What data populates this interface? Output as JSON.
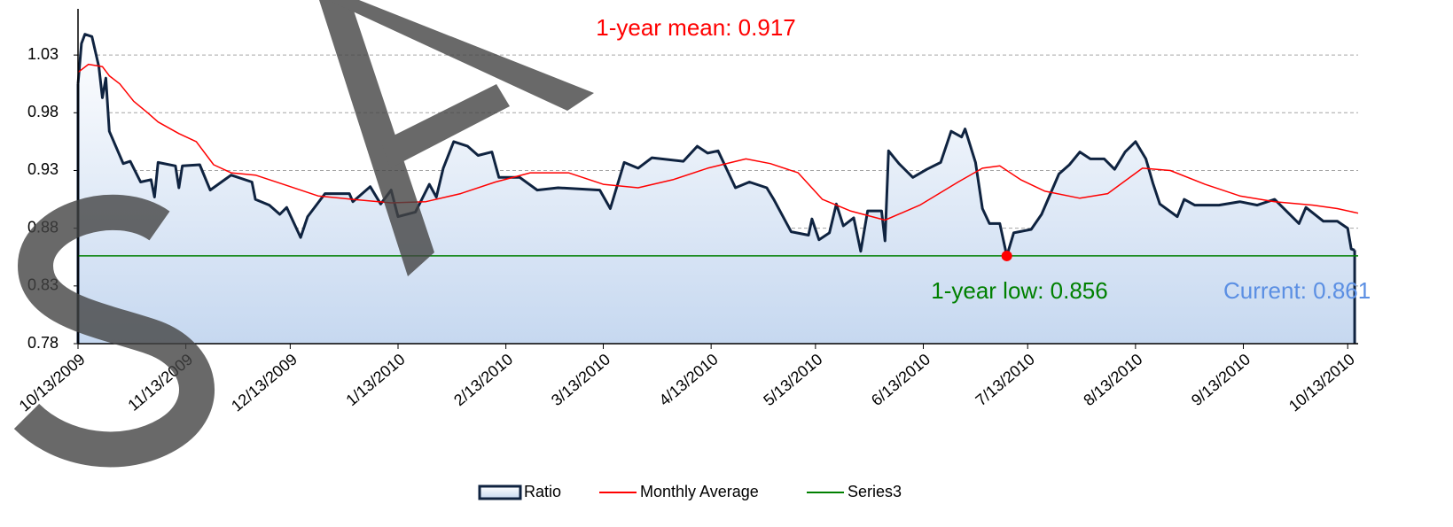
{
  "chart_data": {
    "type": "line",
    "annotations": [
      {
        "text": "1-year mean: 0.917",
        "color": "#ff0000"
      },
      {
        "text": "1-year low: 0.856",
        "color": "#008000"
      },
      {
        "text": "Current: 0.861",
        "color": "#5b8fe3"
      }
    ],
    "low_point": {
      "x": "7/7/2010",
      "value": 0.856,
      "color": "#ff0000"
    },
    "xlim": [
      "10/13/2009",
      "10/16/2010"
    ],
    "xticks": [
      "10/13/2009",
      "11/13/2009",
      "12/13/2009",
      "1/13/2010",
      "2/13/2010",
      "3/13/2010",
      "4/13/2010",
      "5/13/2010",
      "6/13/2010",
      "7/13/2010",
      "8/13/2010",
      "9/13/2010",
      "10/13/2010"
    ],
    "ylim": [
      0.78,
      1.07
    ],
    "yticks": [
      0.78,
      0.83,
      0.88,
      0.93,
      0.98,
      1.03
    ],
    "grid": true,
    "legend": "bottom",
    "series": [
      {
        "name": "Ratio",
        "color": "#0f2340",
        "fill": "#c6d8f0",
        "x": [
          "10/13/2009",
          "10/14/2009",
          "10/15/2009",
          "10/17/2009",
          "10/19/2009",
          "10/20/2009",
          "10/21/2009",
          "10/22/2009",
          "10/26/2009",
          "10/28/2009",
          "10/31/2009",
          "11/3/2009",
          "11/4/2009",
          "11/5/2009",
          "11/10/2009",
          "11/11/2009",
          "11/12/2009",
          "11/17/2009",
          "11/20/2009",
          "11/26/2009",
          "12/2/2009",
          "12/3/2009",
          "12/7/2009",
          "12/10/2009",
          "12/12/2009",
          "12/16/2009",
          "12/18/2009",
          "12/23/2009",
          "12/30/2009",
          "12/31/2009",
          "1/5/2010",
          "1/8/2010",
          "1/11/2010",
          "1/13/2010",
          "1/18/2010",
          "1/22/2010",
          "1/24/2010",
          "1/26/2010",
          "1/29/2010",
          "2/2/2010",
          "2/5/2010",
          "2/9/2010",
          "2/11/2010",
          "2/17/2010",
          "2/22/2010",
          "2/28/2010",
          "3/12/2010",
          "3/15/2010",
          "3/19/2010",
          "3/23/2010",
          "3/27/2010",
          "4/5/2010",
          "4/9/2010",
          "4/12/2010",
          "4/15/2010",
          "4/20/2010",
          "4/24/2010",
          "4/29/2010",
          "5/1/2010",
          "5/6/2010",
          "5/11/2010",
          "5/12/2010",
          "5/14/2010",
          "5/17/2010",
          "5/19/2010",
          "5/21/2010",
          "5/24/2010",
          "5/26/2010",
          "5/28/2010",
          "6/1/2010",
          "6/2/2010",
          "6/3/2010",
          "6/6/2010",
          "6/10/2010",
          "6/14/2010",
          "6/18/2010",
          "6/21/2010",
          "6/24/2010",
          "6/25/2010",
          "6/28/2010",
          "6/30/2010",
          "7/2/2010",
          "7/5/2010",
          "7/7/2010",
          "7/9/2010",
          "7/14/2010",
          "7/17/2010",
          "7/22/2010",
          "7/25/2010",
          "7/28/2010",
          "7/31/2010",
          "8/4/2010",
          "8/7/2010",
          "8/10/2010",
          "8/13/2010",
          "8/16/2010",
          "8/18/2010",
          "8/20/2010",
          "8/25/2010",
          "8/27/2010",
          "8/30/2010",
          "9/6/2010",
          "9/12/2010",
          "9/17/2010",
          "9/22/2010",
          "9/29/2010",
          "10/1/2010",
          "10/6/2010",
          "10/10/2010",
          "10/13/2010",
          "10/14/2010",
          "10/15/2010"
        ],
        "values": [
          1.005,
          1.04,
          1.048,
          1.046,
          1.02,
          0.993,
          1.01,
          0.964,
          0.936,
          0.938,
          0.92,
          0.922,
          0.907,
          0.937,
          0.934,
          0.915,
          0.934,
          0.935,
          0.913,
          0.926,
          0.92,
          0.905,
          0.9,
          0.892,
          0.898,
          0.872,
          0.89,
          0.91,
          0.91,
          0.903,
          0.916,
          0.901,
          0.913,
          0.89,
          0.894,
          0.918,
          0.907,
          0.932,
          0.955,
          0.951,
          0.943,
          0.946,
          0.924,
          0.924,
          0.913,
          0.915,
          0.913,
          0.897,
          0.937,
          0.932,
          0.941,
          0.938,
          0.951,
          0.945,
          0.947,
          0.915,
          0.92,
          0.915,
          0.905,
          0.877,
          0.874,
          0.888,
          0.87,
          0.876,
          0.901,
          0.882,
          0.889,
          0.86,
          0.895,
          0.895,
          0.869,
          0.947,
          0.936,
          0.924,
          0.931,
          0.937,
          0.964,
          0.959,
          0.966,
          0.937,
          0.897,
          0.884,
          0.884,
          0.856,
          0.876,
          0.879,
          0.892,
          0.927,
          0.935,
          0.946,
          0.94,
          0.94,
          0.931,
          0.946,
          0.955,
          0.94,
          0.919,
          0.901,
          0.89,
          0.905,
          0.9,
          0.9,
          0.903,
          0.9,
          0.905,
          0.884,
          0.898,
          0.886,
          0.886,
          0.88,
          0.862,
          0.861
        ]
      },
      {
        "name": "Monthly Average",
        "color": "#ff0000",
        "x": [
          "10/13/2009",
          "10/16/2009",
          "10/20/2009",
          "10/22/2009",
          "10/25/2009",
          "10/29/2009",
          "11/2/2009",
          "11/5/2009",
          "11/11/2009",
          "11/16/2009",
          "11/21/2009",
          "11/26/2009",
          "12/3/2009",
          "12/11/2009",
          "12/21/2009",
          "12/31/2009",
          "1/11/2010",
          "1/21/2010",
          "1/31/2010",
          "2/10/2010",
          "2/20/2010",
          "3/3/2010",
          "3/13/2010",
          "3/23/2010",
          "4/2/2010",
          "4/12/2010",
          "4/23/2010",
          "4/30/2010",
          "5/8/2010",
          "5/15/2010",
          "5/23/2010",
          "6/2/2010",
          "6/12/2010",
          "6/23/2010",
          "6/30/2010",
          "7/5/2010",
          "7/11/2010",
          "7/18/2010",
          "7/28/2010",
          "8/5/2010",
          "8/15/2010",
          "8/23/2010",
          "9/2/2010",
          "9/12/2010",
          "9/22/2010",
          "10/3/2010",
          "10/10/2010",
          "10/16/2010"
        ],
        "values": [
          1.015,
          1.022,
          1.02,
          1.012,
          1.005,
          0.99,
          0.98,
          0.972,
          0.962,
          0.955,
          0.935,
          0.928,
          0.926,
          0.918,
          0.908,
          0.905,
          0.902,
          0.903,
          0.91,
          0.92,
          0.928,
          0.928,
          0.918,
          0.915,
          0.922,
          0.932,
          0.94,
          0.936,
          0.928,
          0.905,
          0.895,
          0.887,
          0.9,
          0.92,
          0.932,
          0.934,
          0.922,
          0.912,
          0.906,
          0.91,
          0.932,
          0.93,
          0.918,
          0.908,
          0.903,
          0.9,
          0.897,
          0.893
        ]
      },
      {
        "name": "Series3",
        "color": "#008000",
        "x": [
          "10/13/2009",
          "10/16/2010"
        ],
        "values": [
          0.856,
          0.856
        ]
      }
    ]
  }
}
